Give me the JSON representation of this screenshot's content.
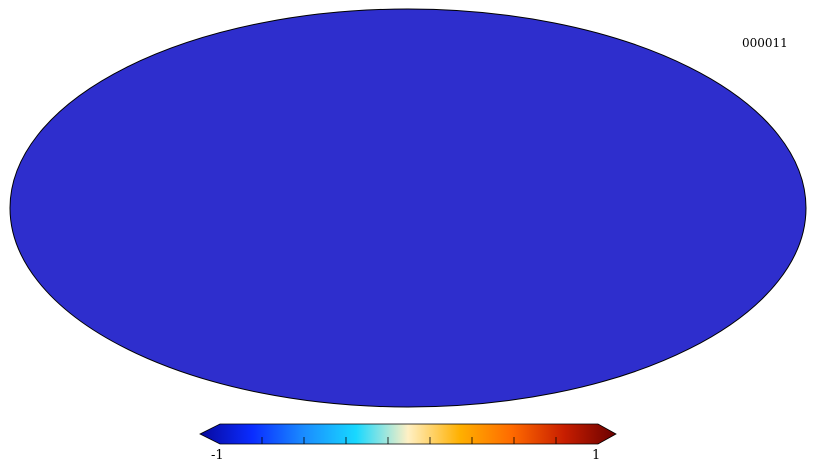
{
  "map": {
    "projection": "mollweide",
    "label": "000011"
  },
  "colorbar": {
    "min_label": "-1",
    "max_label": "1",
    "min": -1,
    "max": 1,
    "minor_ticks": 9,
    "colors": [
      "#08089c",
      "#0a2cff",
      "#1a8cff",
      "#18d8ff",
      "#fff0c4",
      "#ffb000",
      "#ff6a00",
      "#c81e00",
      "#6a0000"
    ]
  }
}
